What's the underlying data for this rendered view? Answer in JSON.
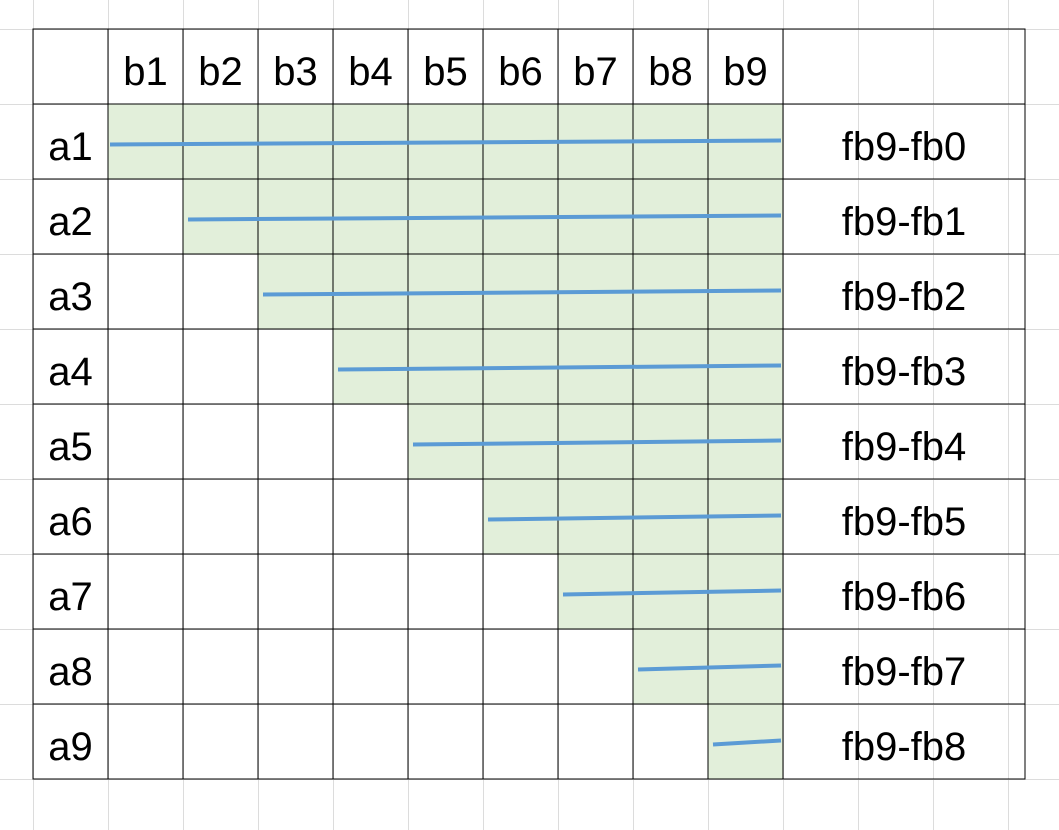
{
  "columns": [
    "b1",
    "b2",
    "b3",
    "b4",
    "b5",
    "b6",
    "b7",
    "b8",
    "b9"
  ],
  "rows": [
    {
      "label": "a1",
      "note": "fb9-fb0"
    },
    {
      "label": "a2",
      "note": "fb9-fb1"
    },
    {
      "label": "a3",
      "note": "fb9-fb2"
    },
    {
      "label": "a4",
      "note": "fb9-fb3"
    },
    {
      "label": "a5",
      "note": "fb9-fb4"
    },
    {
      "label": "a6",
      "note": "fb9-fb5"
    },
    {
      "label": "a7",
      "note": "fb9-fb6"
    },
    {
      "label": "a8",
      "note": "fb9-fb7"
    },
    {
      "label": "a9",
      "note": "fb9-fb8"
    }
  ],
  "colors": {
    "shade": "#e2efda",
    "line": "#5b9bd5",
    "grid": "#000000"
  }
}
